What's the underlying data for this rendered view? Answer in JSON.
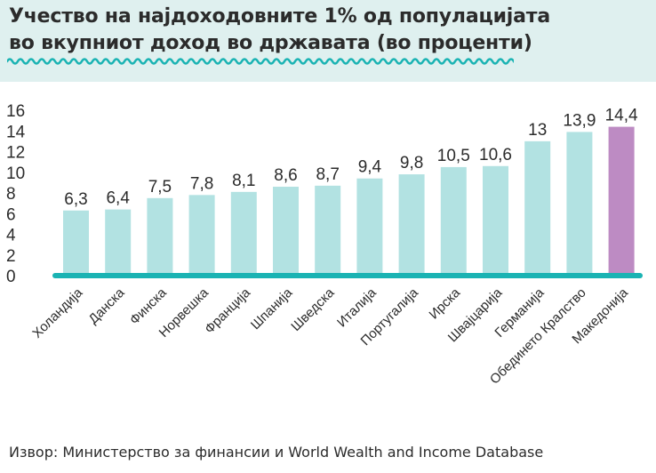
{
  "header": {
    "title_line1": "Учество на најдоходовните 1% од популацијата",
    "title_line2": "во вкупниот доход во државата (во проценти)"
  },
  "footer": {
    "source": "Извор: Министерство за финансии и World Wealth and Income Database"
  },
  "colors": {
    "header_background": "#dff0ef",
    "bar_default": "#b2e2e2",
    "bar_highlight": "#bd8bc3",
    "baseline": "#1ab3b3",
    "wave": "#1ab3b3"
  },
  "chart_data": {
    "type": "bar",
    "title": "Учество на најдоходовните 1% од популацијата во вкупниот доход во државата (во проценти)",
    "categories": [
      "Холандија",
      "Данска",
      "Финска",
      "Норвешка",
      "Франција",
      "Шпанија",
      "Шведска",
      "Италија",
      "Португалија",
      "Ирска",
      "Швајцарија",
      "Германија",
      "Обединето Кралство",
      "Македонија"
    ],
    "values": [
      6.3,
      6.4,
      7.5,
      7.8,
      8.1,
      8.6,
      8.7,
      9.4,
      9.8,
      10.5,
      10.6,
      13,
      13.9,
      14.4
    ],
    "value_labels": [
      "6,3",
      "6,4",
      "7,5",
      "7,8",
      "8,1",
      "8,6",
      "8,7",
      "9,4",
      "9,8",
      "10,5",
      "10,6",
      "13",
      "13,9",
      "14,4"
    ],
    "highlight": "Македонија",
    "yticks": [
      "0",
      "2",
      "4",
      "6",
      "8",
      "10",
      "12",
      "14",
      "16"
    ],
    "ylim": [
      0,
      16
    ],
    "grid": false,
    "legend": "none"
  }
}
